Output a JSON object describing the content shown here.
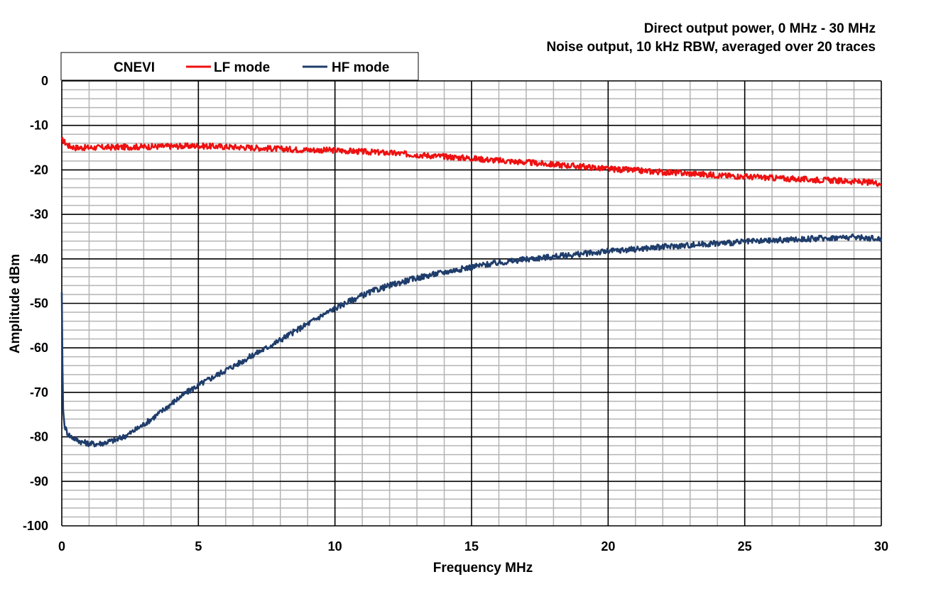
{
  "chart_data": {
    "type": "line",
    "title_lines": [
      "Direct output power, 0 MHz - 30 MHz",
      "Noise output, 10 kHz RBW, averaged over 20 traces"
    ],
    "xlabel": "Frequency MHz",
    "ylabel": "Amplitude dBm",
    "xlim": [
      0,
      30
    ],
    "ylim": [
      -100,
      0
    ],
    "xticks": [
      "0",
      "5",
      "10",
      "15",
      "20",
      "25",
      "30"
    ],
    "yticks": [
      "0",
      "-10",
      "-20",
      "-30",
      "-40",
      "-50",
      "-60",
      "-70",
      "-80",
      "-90",
      "-100"
    ],
    "grid": true,
    "legend_position": "top-left",
    "legend_title": "CNEVI",
    "series": [
      {
        "name": "LF mode",
        "color": "#ee1111",
        "x": [
          0,
          0.25,
          0.5,
          1,
          2,
          3,
          4,
          5,
          6,
          7,
          8,
          9,
          10,
          11,
          12,
          13,
          14,
          15,
          16,
          17,
          18,
          19,
          20,
          21,
          22,
          23,
          24,
          25,
          26,
          27,
          28,
          29,
          30
        ],
        "y": [
          -13.2,
          -14.6,
          -15.0,
          -15.0,
          -14.9,
          -14.8,
          -14.7,
          -14.6,
          -14.8,
          -15.0,
          -15.3,
          -15.5,
          -15.6,
          -15.9,
          -16.2,
          -16.6,
          -17.0,
          -17.4,
          -17.9,
          -18.3,
          -18.8,
          -19.2,
          -19.8,
          -20.1,
          -20.5,
          -20.8,
          -21.2,
          -21.5,
          -21.8,
          -22.1,
          -22.3,
          -22.6,
          -23.0
        ]
      },
      {
        "name": "HF mode",
        "color": "#1f3d6b",
        "x": [
          0,
          0.02,
          0.05,
          0.1,
          0.2,
          0.3,
          0.5,
          0.75,
          1,
          1.25,
          1.5,
          1.75,
          2,
          2.25,
          2.5,
          3,
          3.5,
          4,
          4.5,
          5,
          5.5,
          6,
          6.5,
          7,
          7.5,
          8,
          8.5,
          9,
          9.5,
          10,
          10.5,
          11,
          11.5,
          12,
          12.5,
          13,
          13.5,
          14,
          14.5,
          15,
          15.5,
          16,
          16.5,
          17,
          17.5,
          18,
          18.5,
          19,
          20,
          21,
          22,
          23,
          24,
          25,
          26,
          27,
          28,
          29,
          30
        ],
        "y": [
          -47.5,
          -62,
          -74,
          -77.5,
          -79,
          -79.8,
          -80.5,
          -81.2,
          -81.5,
          -81.6,
          -81.4,
          -81.0,
          -80.7,
          -80.0,
          -79.2,
          -77.2,
          -75.0,
          -72.6,
          -70.3,
          -68.4,
          -66.7,
          -65.0,
          -63.4,
          -61.6,
          -60.0,
          -58.2,
          -56.4,
          -54.6,
          -52.8,
          -51.1,
          -49.6,
          -48.2,
          -47.0,
          -46.0,
          -45.1,
          -44.3,
          -43.6,
          -43.0,
          -42.4,
          -41.8,
          -41.3,
          -40.9,
          -40.5,
          -40.1,
          -39.8,
          -39.5,
          -39.2,
          -38.9,
          -38.3,
          -37.8,
          -37.3,
          -36.9,
          -36.5,
          -36.2,
          -35.9,
          -35.6,
          -35.3,
          -35.1,
          -35.5
        ]
      }
    ]
  }
}
